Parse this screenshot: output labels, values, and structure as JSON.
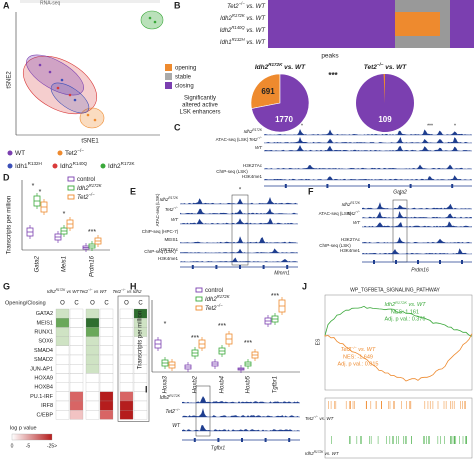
{
  "A": {
    "letter": "A",
    "header": "RNA-seq",
    "y_axis": "tSNE2",
    "x_axis": "tSNE1",
    "legend": [
      {
        "text": "WT"
      },
      {
        "text": "Tet2",
        "sup": "−/−"
      },
      {
        "text": "Idh1",
        "sup": "R132H"
      },
      {
        "text": "Idh2",
        "sup": "R140Q"
      },
      {
        "text": "Idh2",
        "sup": "R172K"
      }
    ]
  },
  "B": {
    "letter": "B",
    "rows": [
      {
        "text": "Tet2",
        "sup": "−/−",
        "rest": " vs. WT"
      },
      {
        "text": "Idh2",
        "sup": "R172K",
        "rest": " vs. WT"
      },
      {
        "text": "Idh2",
        "sup": "R140Q",
        "rest": " vs. WT"
      },
      {
        "text": "Idh1",
        "sup": "R132H",
        "rest": " vs. WT"
      }
    ],
    "x_axis": "peaks",
    "legend": [
      "opening",
      "stable",
      "closing"
    ],
    "caption": [
      "Significantly",
      "altered active",
      "LSK enhancers"
    ],
    "significance": "***",
    "pies": [
      {
        "title": {
          "text": "Idh2",
          "sup": "R172K",
          "rest": " vs. WT"
        },
        "opening": 691,
        "closing": 1770
      },
      {
        "title": {
          "text": "Tet2",
          "sup": "−/−",
          "rest": " vs. WT"
        },
        "closing": 109
      }
    ]
  },
  "C": {
    "letter": "C",
    "assays": [
      "ATAC-seq (LSK)",
      "ChIP-seq (LSK)"
    ],
    "marks": [
      "H3K27Ac",
      "H3K4me1"
    ],
    "samples": [
      {
        "text": "Idh2",
        "sup": "R172K"
      },
      {
        "text": "Tet2",
        "sup": "−/−"
      },
      {
        "text": "WT"
      }
    ],
    "gene": "Gata2",
    "stars": [
      "*",
      "***",
      "*"
    ]
  },
  "D": {
    "letter": "D",
    "y_axis": "Transcripts per million",
    "legend": [
      {
        "text": "control"
      },
      {
        "text": "Idh2",
        "sup": "R172K"
      },
      {
        "text": "Tet2",
        "sup": "−/−"
      }
    ],
    "genes": [
      "Gata2",
      "Meis1",
      "Prdm16"
    ],
    "stars": [
      "*",
      "*",
      "*",
      "***"
    ]
  },
  "E": {
    "letter": "E",
    "samples": [
      {
        "text": "Idh2",
        "sup": "R172K"
      },
      {
        "text": "Tet2",
        "sup": "−/−"
      },
      {
        "text": "WT"
      }
    ],
    "assays": [
      "ATAC-seq (LSK)",
      "ChIP-seq (HPC-7)",
      "MEIS1",
      "ChIP-seq (LSK)",
      "H3K27Ac",
      "H3K4me1"
    ],
    "gene": "Mmrn1",
    "star": "*"
  },
  "F": {
    "letter": "F",
    "samples": [
      {
        "text": "Idh2",
        "sup": "R172K"
      },
      {
        "text": "Tet2",
        "sup": "−/−"
      },
      {
        "text": "WT"
      }
    ],
    "assays": [
      "ATAC-seq (LSK)",
      "ChIP-seq (LSK)",
      "H3K27Ac",
      "H3K4me1"
    ],
    "gene": "Prdm16",
    "star": "*"
  },
  "G": {
    "letter": "G",
    "header": "Opening/Closing",
    "columns": [
      {
        "text": "Idh2",
        "sup": "R172K",
        "rest": " vs WT"
      },
      {
        "text": "Tet2",
        "sup": "−/−",
        "rest": " vs WT"
      },
      {
        "text": "Tet2",
        "sup": "−/−",
        "rest": " vs Idh2"
      }
    ],
    "oc": [
      "O",
      "C",
      "O",
      "C",
      "O",
      "C"
    ],
    "rows": [
      "GATA2",
      "MEIS1",
      "RUNX1",
      "SOX6",
      "SMAD4",
      "SMAD2",
      "JUN-AP1",
      "HOXA9",
      "HOXB4",
      "PU.1-IRF",
      "IRF8",
      "C/EBP"
    ],
    "scale_title": "log p value",
    "scale": [
      "0",
      "-5",
      "-25>"
    ]
  },
  "H": {
    "letter": "H",
    "y_axis": "Transcripts per million",
    "legend": [
      {
        "text": "control"
      },
      {
        "text": "Idh2",
        "sup": "R172K"
      },
      {
        "text": "Tet2",
        "sup": "−/−"
      }
    ],
    "genes": [
      "Hoxa3",
      "Hoxb2",
      "Hoxb4",
      "Hoxb5",
      "Tgfbr1"
    ],
    "stars": [
      "*",
      "***",
      "***",
      "***",
      "***"
    ]
  },
  "I": {
    "letter": "I",
    "samples": [
      {
        "text": "Idh2",
        "sup": "R172K"
      },
      {
        "text": "Tet2",
        "sup": "−/−"
      },
      {
        "text": "WT"
      }
    ],
    "gene": "Tgfbr1"
  },
  "J": {
    "letter": "J",
    "title": "WP_TGFBETA_SIGNALING_PATHWAY",
    "y_axis": "ES",
    "up": {
      "name": {
        "text": "Idh2",
        "sup": "R172K",
        "rest": " vs. WT"
      },
      "nes": "NES: 1.161",
      "p": "Adj. p val.: 0.376"
    },
    "down": {
      "name": {
        "text": "Tet2",
        "sup": "−/−",
        "rest": " vs. WT"
      },
      "nes": "NES: -1.649",
      "p": "Adj. p val.: 0.015"
    },
    "barcodes": [
      {
        "text": "Tet2",
        "sup": "−/−",
        "rest": " vs. WT"
      },
      {
        "text": "Idh2",
        "sup": "R172K",
        "rest": " vs. WT"
      }
    ]
  }
}
